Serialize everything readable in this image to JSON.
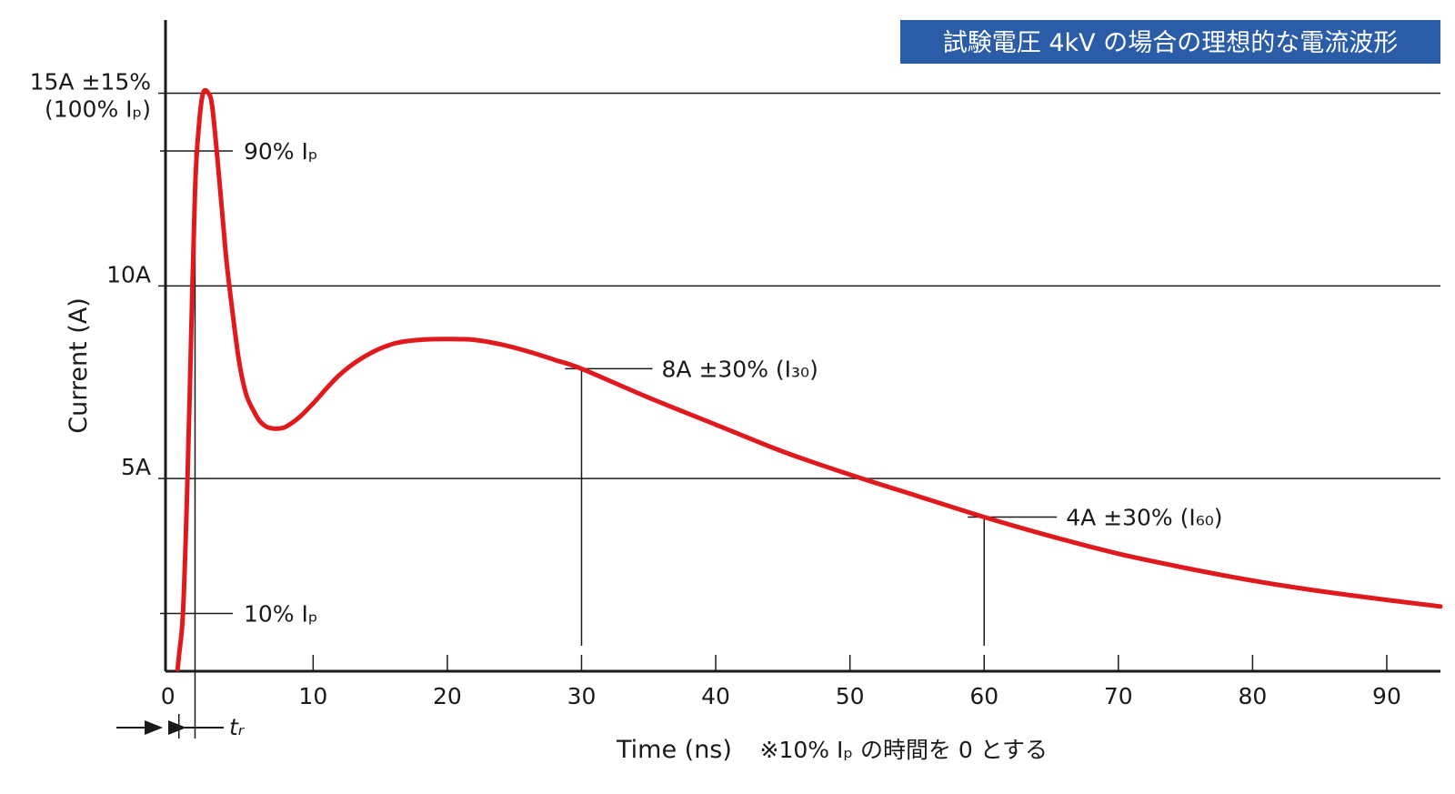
{
  "chart_data": {
    "type": "line",
    "title": "試験電圧 4kV の場合の理想的な電流波形",
    "xlabel": "Time (ns)",
    "xlabel_note": "※10% Iₚ の時間を 0 とする",
    "ylabel": "Current (A)",
    "xlim": [
      -1,
      94
    ],
    "ylim": [
      0,
      16.9
    ],
    "x_ticks": [
      0,
      10,
      20,
      30,
      40,
      50,
      60,
      70,
      80,
      90
    ],
    "x_tick_labels": [
      "0",
      "10",
      "20",
      "30",
      "40",
      "50",
      "60",
      "70",
      "80",
      "90"
    ],
    "y_gridlines": [
      5,
      10,
      15
    ],
    "y_tick_labels": [
      {
        "value": 5,
        "label": "5A"
      },
      {
        "value": 10,
        "label": "10A"
      },
      {
        "value": 15,
        "label": "15A ±15%"
      }
    ],
    "y_tick_sublabel": "(100% Iₚ)",
    "series": [
      {
        "name": "current",
        "color": "#e0191c",
        "x": [
          -0.1,
          0,
          0.3,
          0.6,
          0.9,
          1.2,
          1.5,
          1.8,
          2.2,
          2.5,
          3,
          3.5,
          4,
          4.5,
          5,
          5.5,
          6,
          6.5,
          7,
          7.5,
          8,
          9,
          10,
          12,
          14,
          16,
          18,
          20,
          22,
          24,
          26,
          28,
          30,
          35,
          40,
          45,
          50,
          55,
          60,
          65,
          70,
          75,
          80,
          85,
          90,
          94
        ],
        "values": [
          0.05,
          0.4,
          1.5,
          4.5,
          8.5,
          12.5,
          14.2,
          15.0,
          15.0,
          14.6,
          12.8,
          10.8,
          9.3,
          8.0,
          7.2,
          6.8,
          6.5,
          6.35,
          6.3,
          6.3,
          6.35,
          6.6,
          6.95,
          7.7,
          8.2,
          8.5,
          8.6,
          8.62,
          8.6,
          8.48,
          8.3,
          8.08,
          7.85,
          7.1,
          6.4,
          5.7,
          5.1,
          4.55,
          4.0,
          3.5,
          3.05,
          2.68,
          2.35,
          2.08,
          1.85,
          1.68
        ]
      }
    ],
    "markers": [
      {
        "name": "90pct",
        "y": 13.5,
        "label": "90% Iₚ"
      },
      {
        "name": "10pct",
        "y": 1.5,
        "label": "10% Iₚ"
      },
      {
        "name": "i30",
        "x": 30,
        "y": 7.85,
        "label": "8A ±30% (I₃₀)"
      },
      {
        "name": "i60",
        "x": 60,
        "y": 4.0,
        "label": "4A ±30% (I₆₀)"
      }
    ],
    "tr_label": "tᵣ",
    "tr_x": 1.2,
    "grid": true
  },
  "colors": {
    "curve": "#e0191c",
    "title_bg": "#2a5ca8",
    "axis": "#1a1a1a"
  }
}
